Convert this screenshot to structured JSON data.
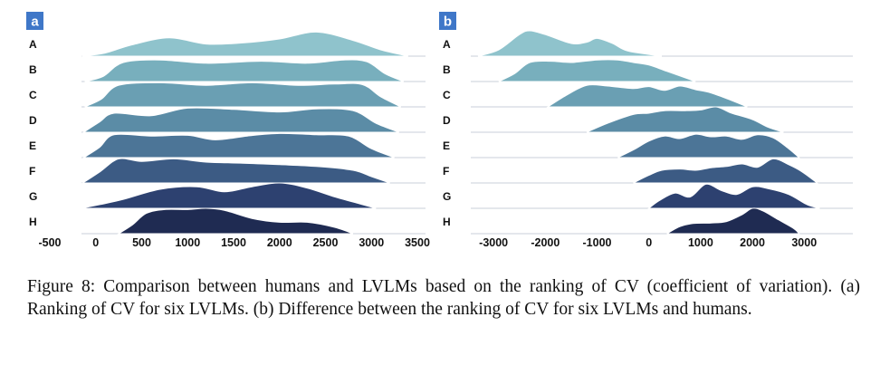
{
  "caption": "Figure 8: Comparison between humans and LVLMs based on the ranking of CV (coefficient of variation). (a) Ranking of CV for six LVLMs. (b) Difference between the ranking of CV for six LVLMs and humans.",
  "chart_data": [
    {
      "type": "area",
      "subtype": "ridgeline",
      "panel": "a",
      "rows": [
        "A",
        "B",
        "C",
        "D",
        "E",
        "F",
        "G",
        "H"
      ],
      "colors": [
        "#8fc3cc",
        "#78afbd",
        "#6a9fb3",
        "#5b8ca6",
        "#4c7597",
        "#3c5b84",
        "#2d4170",
        "#1f2b52"
      ],
      "xlim": [
        -500,
        3500
      ],
      "xticks": [
        -500,
        0,
        500,
        1000,
        1500,
        2000,
        2500,
        3000,
        3500
      ],
      "series": [
        {
          "name": "A",
          "x": [
            -150,
            100,
            400,
            800,
            1200,
            1600,
            2000,
            2400,
            2800,
            3100,
            3400
          ],
          "y": [
            0,
            0.12,
            0.45,
            0.72,
            0.48,
            0.52,
            0.68,
            0.95,
            0.62,
            0.25,
            0
          ]
        },
        {
          "name": "B",
          "x": [
            -120,
            80,
            300,
            700,
            1200,
            1800,
            2300,
            2700,
            2950,
            3150,
            3350
          ],
          "y": [
            0,
            0.2,
            0.75,
            0.85,
            0.72,
            0.8,
            0.72,
            0.85,
            0.78,
            0.3,
            0
          ]
        },
        {
          "name": "C",
          "x": [
            -120,
            60,
            250,
            700,
            1200,
            1700,
            2200,
            2600,
            2900,
            3100,
            3320
          ],
          "y": [
            0,
            0.3,
            0.85,
            0.95,
            0.85,
            0.95,
            0.85,
            0.9,
            0.88,
            0.4,
            0
          ]
        },
        {
          "name": "D",
          "x": [
            -130,
            40,
            200,
            600,
            1000,
            1500,
            2000,
            2400,
            2800,
            3050,
            3300
          ],
          "y": [
            0,
            0.4,
            0.75,
            0.65,
            0.95,
            0.9,
            0.8,
            0.92,
            0.85,
            0.35,
            0
          ]
        },
        {
          "name": "E",
          "x": [
            -130,
            40,
            200,
            600,
            1000,
            1300,
            1650,
            2000,
            2400,
            2750,
            3000,
            3250
          ],
          "y": [
            0,
            0.4,
            0.9,
            0.85,
            0.88,
            0.7,
            0.85,
            0.95,
            0.9,
            0.85,
            0.35,
            0
          ]
        },
        {
          "name": "F",
          "x": [
            -140,
            50,
            250,
            500,
            850,
            1200,
            1600,
            2000,
            2400,
            2800,
            3000,
            3200
          ],
          "y": [
            0,
            0.45,
            0.95,
            0.85,
            0.95,
            0.82,
            0.78,
            0.72,
            0.65,
            0.5,
            0.25,
            0
          ]
        },
        {
          "name": "G",
          "x": [
            -160,
            50,
            300,
            700,
            1100,
            1400,
            1700,
            2000,
            2300,
            2600,
            2850,
            3050
          ],
          "y": [
            0,
            0.15,
            0.35,
            0.75,
            0.85,
            0.65,
            0.85,
            1.0,
            0.8,
            0.45,
            0.2,
            0
          ]
        },
        {
          "name": "H",
          "x": [
            250,
            400,
            550,
            750,
            1000,
            1200,
            1400,
            1700,
            2000,
            2300,
            2600,
            2800
          ],
          "y": [
            0,
            0.35,
            0.8,
            0.95,
            0.95,
            1.0,
            0.92,
            0.6,
            0.45,
            0.45,
            0.25,
            0
          ]
        }
      ]
    },
    {
      "type": "area",
      "subtype": "ridgeline",
      "panel": "b",
      "rows": [
        "A",
        "B",
        "C",
        "D",
        "E",
        "F",
        "G",
        "H"
      ],
      "colors": [
        "#8fc3cc",
        "#78afbd",
        "#6a9fb3",
        "#5b8ca6",
        "#4c7597",
        "#3c5b84",
        "#2d4170",
        "#1f2b52"
      ],
      "xlim": [
        -3300,
        3800
      ],
      "xticks": [
        -3000,
        -2000,
        -1000,
        0,
        1000,
        2000,
        3000
      ],
      "series": [
        {
          "name": "A",
          "x": [
            -3300,
            -2900,
            -2500,
            -2300,
            -2000,
            -1500,
            -1200,
            -1000,
            -700,
            -400,
            250
          ],
          "y": [
            0,
            0.25,
            0.85,
            1.0,
            0.85,
            0.5,
            0.55,
            0.7,
            0.5,
            0.2,
            0
          ]
        },
        {
          "name": "B",
          "x": [
            -2900,
            -2600,
            -2300,
            -1900,
            -1500,
            -1000,
            -600,
            -300,
            0,
            350,
            900
          ],
          "y": [
            0,
            0.3,
            0.75,
            0.8,
            0.75,
            0.85,
            0.85,
            0.75,
            0.65,
            0.4,
            0
          ]
        },
        {
          "name": "C",
          "x": [
            -1950,
            -1600,
            -1200,
            -800,
            -300,
            0,
            300,
            600,
            900,
            1200,
            1600,
            1900
          ],
          "y": [
            0,
            0.45,
            0.85,
            0.82,
            0.72,
            0.8,
            0.65,
            0.82,
            0.68,
            0.55,
            0.25,
            0
          ]
        },
        {
          "name": "D",
          "x": [
            -1200,
            -800,
            -300,
            0,
            300,
            700,
            1000,
            1300,
            1600,
            2000,
            2300,
            2600
          ],
          "y": [
            0,
            0.35,
            0.7,
            0.75,
            0.85,
            0.85,
            0.88,
            1.0,
            0.75,
            0.5,
            0.2,
            0
          ]
        },
        {
          "name": "E",
          "x": [
            -600,
            -300,
            0,
            300,
            600,
            900,
            1200,
            1500,
            1800,
            2100,
            2400,
            2700,
            2900
          ],
          "y": [
            0,
            0.3,
            0.65,
            0.85,
            0.75,
            0.92,
            0.82,
            0.85,
            0.72,
            0.9,
            0.78,
            0.35,
            0
          ]
        },
        {
          "name": "F",
          "x": [
            -300,
            0,
            250,
            600,
            900,
            1200,
            1500,
            1800,
            2100,
            2400,
            2700,
            2950,
            3250
          ],
          "y": [
            0,
            0.3,
            0.5,
            0.55,
            0.5,
            0.6,
            0.65,
            0.75,
            0.62,
            0.95,
            0.72,
            0.45,
            0
          ]
        },
        {
          "name": "G",
          "x": [
            0,
            200,
            500,
            800,
            1100,
            1400,
            1700,
            2000,
            2300,
            2700,
            3050,
            3300
          ],
          "y": [
            0,
            0.3,
            0.6,
            0.45,
            0.95,
            0.7,
            0.55,
            0.85,
            0.78,
            0.55,
            0.15,
            0
          ]
        },
        {
          "name": "H",
          "x": [
            350,
            600,
            850,
            1200,
            1500,
            1800,
            2000,
            2200,
            2500,
            2800,
            2900
          ],
          "y": [
            0,
            0.28,
            0.4,
            0.42,
            0.48,
            0.75,
            1.0,
            0.9,
            0.55,
            0.2,
            0
          ]
        }
      ]
    }
  ]
}
